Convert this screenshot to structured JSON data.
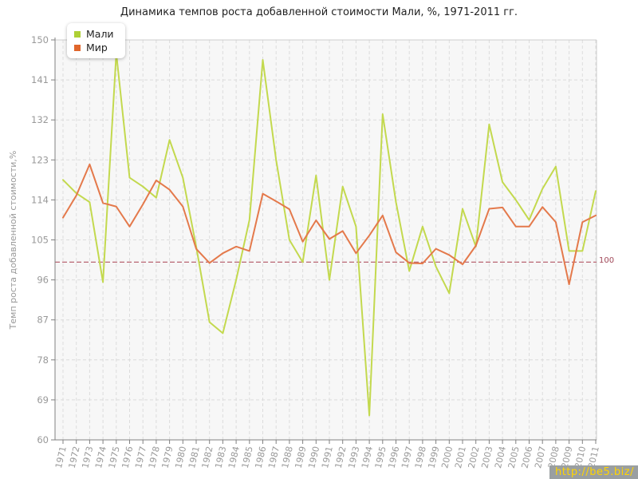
{
  "title": "Динамика темпов роста добавленной стоимости Мали, %, 1971-2011 гг.",
  "legend": {
    "items": [
      {
        "label": "Мали",
        "color": "#aed035"
      },
      {
        "label": "Мир",
        "color": "#e0662b"
      }
    ]
  },
  "y_axis": {
    "title": "Темп роста добавленной стоимости,%",
    "ticks": [
      60,
      69,
      78,
      87,
      96,
      105,
      114,
      123,
      132,
      141,
      150
    ],
    "min": 60,
    "max": 150
  },
  "guide": {
    "value": 100,
    "label": "100",
    "line_color": "#b25563",
    "label_color": "#a04858"
  },
  "watermark": {
    "text": "http://be5.biz/",
    "bg": "#9a9fa1",
    "color": "#ffd400"
  },
  "colors": {
    "grid": "#dcdcdc",
    "axis": "#808080",
    "plot_border": "#cccccc",
    "plot_bg": "#f7f7f7",
    "tick_label": "#999999"
  },
  "chart_data": {
    "type": "line",
    "title": "Динамика темпов роста добавленной стоимости Мали, %, 1971-2011 гг.",
    "xlabel": "",
    "ylabel": "Темп роста добавленной стоимости,%",
    "ylim": [
      60,
      150
    ],
    "grid": true,
    "legend_position": "top-left",
    "guide_line_y": 100,
    "x": [
      1971,
      1972,
      1973,
      1974,
      1975,
      1976,
      1977,
      1978,
      1979,
      1980,
      1981,
      1982,
      1983,
      1984,
      1985,
      1986,
      1987,
      1988,
      1989,
      1990,
      1991,
      1992,
      1993,
      1994,
      1995,
      1996,
      1997,
      1998,
      1999,
      2000,
      2001,
      2002,
      2003,
      2004,
      2005,
      2006,
      2007,
      2008,
      2009,
      2010,
      2011
    ],
    "series": [
      {
        "name": "Мали",
        "color": "#c3d94e",
        "values": [
          118.5,
          115.5,
          113.5,
          95.5,
          147,
          119,
          117,
          114.5,
          127.5,
          119,
          103.5,
          86.5,
          84,
          96,
          109.5,
          145.5,
          123,
          105,
          100,
          119.5,
          96,
          117,
          108,
          65.5,
          133.3,
          113.5,
          98,
          108,
          99,
          93,
          112,
          103.5,
          131,
          118,
          114,
          109.5,
          116.5,
          121.5,
          102.5,
          102.5,
          116
        ]
      },
      {
        "name": "Мир",
        "color": "#e4794b",
        "values": [
          110,
          115,
          122,
          113.3,
          112.5,
          108,
          113,
          118.4,
          116.3,
          112.5,
          103,
          99.8,
          102,
          103.5,
          102.5,
          115.4,
          113.7,
          111.9,
          104.6,
          109.4,
          105.2,
          107,
          102,
          106,
          110.5,
          102.2,
          99.8,
          99.7,
          103,
          101.6,
          99.5,
          103.7,
          112,
          112.3,
          108,
          108,
          112.4,
          109,
          95,
          109,
          110.5
        ]
      }
    ]
  }
}
